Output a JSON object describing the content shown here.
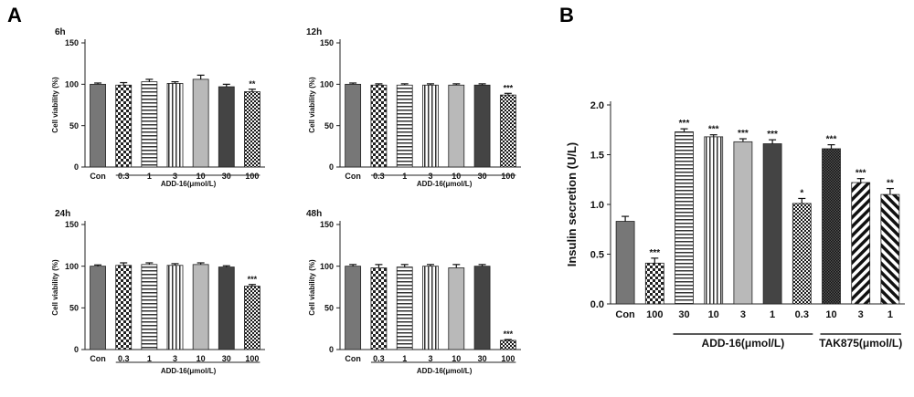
{
  "figure": {
    "panel_a_letter": "A",
    "panel_b_letter": "B"
  },
  "chart_data": [
    {
      "type": "bar",
      "panel": "A",
      "title": "6h",
      "xlabel": "",
      "group_label": "ADD-16(μmol/L)",
      "ylabel": "Cell viability (%)",
      "ylim": [
        0,
        150
      ],
      "yticks": [
        0,
        50,
        100,
        150
      ],
      "categories": [
        "Con",
        "0.3",
        "1",
        "3",
        "10",
        "30",
        "100"
      ],
      "values": [
        100,
        99,
        103,
        101,
        106,
        97,
        91
      ],
      "errors": [
        1.5,
        3,
        3,
        2,
        5,
        3,
        3
      ],
      "significance": [
        "",
        "",
        "",
        "",
        "",
        "",
        "**"
      ],
      "patterns": [
        "solid-gray",
        "checker",
        "hlines",
        "vlines",
        "light-gray",
        "dark-gray",
        "fine-check"
      ],
      "grid": false
    },
    {
      "type": "bar",
      "panel": "A",
      "title": "12h",
      "xlabel": "",
      "group_label": "ADD-16(μmol/L)",
      "ylabel": "Cell viability (%)",
      "ylim": [
        0,
        150
      ],
      "yticks": [
        0,
        50,
        100,
        150
      ],
      "categories": [
        "Con",
        "0.3",
        "1",
        "3",
        "10",
        "30",
        "100"
      ],
      "values": [
        100,
        99,
        99,
        99,
        99,
        99,
        87
      ],
      "errors": [
        1.5,
        1.5,
        1.5,
        1.5,
        1.5,
        1.5,
        2
      ],
      "significance": [
        "",
        "",
        "",
        "",
        "",
        "",
        "***"
      ],
      "patterns": [
        "solid-gray",
        "checker",
        "hlines",
        "vlines",
        "light-gray",
        "dark-gray",
        "fine-check"
      ],
      "grid": false
    },
    {
      "type": "bar",
      "panel": "A",
      "title": "24h",
      "xlabel": "",
      "group_label": "ADD-16(μmol/L)",
      "ylabel": "Cell viability (%)",
      "ylim": [
        0,
        150
      ],
      "yticks": [
        0,
        50,
        100,
        150
      ],
      "categories": [
        "Con",
        "0.3",
        "1",
        "3",
        "10",
        "30",
        "100"
      ],
      "values": [
        100,
        101,
        102,
        101,
        102,
        99,
        76
      ],
      "errors": [
        1.5,
        3,
        2,
        2,
        2,
        1.5,
        2
      ],
      "significance": [
        "",
        "",
        "",
        "",
        "",
        "",
        "***"
      ],
      "patterns": [
        "solid-gray",
        "checker",
        "hlines",
        "vlines",
        "light-gray",
        "dark-gray",
        "fine-check"
      ],
      "grid": false
    },
    {
      "type": "bar",
      "panel": "A",
      "title": "48h",
      "xlabel": "",
      "group_label": "ADD-16(μmol/L)",
      "ylabel": "Cell viability (%)",
      "ylim": [
        0,
        150
      ],
      "yticks": [
        0,
        50,
        100,
        150
      ],
      "categories": [
        "Con",
        "0.3",
        "1",
        "3",
        "10",
        "30",
        "100"
      ],
      "values": [
        100,
        98,
        99,
        100,
        98,
        100,
        11
      ],
      "errors": [
        2,
        4,
        3,
        2,
        4,
        2,
        1
      ],
      "significance": [
        "",
        "",
        "",
        "",
        "",
        "",
        "***"
      ],
      "patterns": [
        "solid-gray",
        "checker",
        "hlines",
        "vlines",
        "light-gray",
        "dark-gray",
        "fine-check"
      ],
      "grid": false
    },
    {
      "type": "bar",
      "panel": "B",
      "title": "",
      "xlabel": "",
      "ylabel": "Insulin secretion (U/L)",
      "ylim": [
        0,
        2.0
      ],
      "yticks": [
        "0.0",
        "0.5",
        "1.0",
        "1.5",
        "2.0"
      ],
      "categories": [
        "Con",
        "100",
        "30",
        "10",
        "3",
        "1",
        "0.3",
        "10",
        "3",
        "1"
      ],
      "values": [
        0.83,
        0.41,
        1.73,
        1.68,
        1.63,
        1.61,
        1.01,
        1.56,
        1.22,
        1.1
      ],
      "errors": [
        0.05,
        0.05,
        0.03,
        0.02,
        0.03,
        0.04,
        0.05,
        0.04,
        0.04,
        0.06
      ],
      "significance": [
        "",
        "***",
        "***",
        "***",
        "***",
        "***",
        "*",
        "***",
        "***",
        "**"
      ],
      "patterns": [
        "solid-gray",
        "checker",
        "hlines",
        "vlines",
        "light-gray",
        "dark-gray",
        "fine-check",
        "dense-check",
        "diag-right",
        "diag-left"
      ],
      "groups": [
        {
          "label": "ADD-16(μmol/L)",
          "from": 2,
          "to": 6
        },
        {
          "label": "TAK875(μmol/L)",
          "from": 7,
          "to": 9
        }
      ],
      "grid": false
    }
  ]
}
